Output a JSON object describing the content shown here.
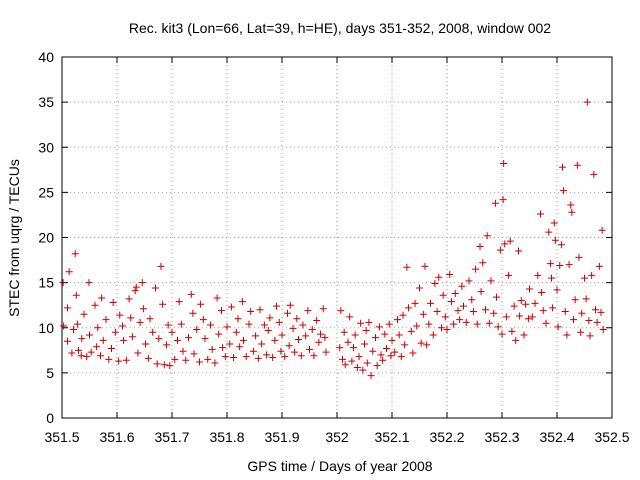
{
  "chart_data": {
    "type": "scatter",
    "title": "Rec. kit3 (Lon=66, Lat=39, h=HE), days 351-352, 2008, window 002",
    "xlabel": "GPS time / Days of year 2008",
    "ylabel": "STEC from uqrg / TECUs",
    "xlim": [
      351.5,
      352.5
    ],
    "ylim": [
      0,
      40
    ],
    "xticks": [
      "351.5",
      "351.6",
      "351.7",
      "351.8",
      "351.9",
      "352",
      "352.1",
      "352.2",
      "352.3",
      "352.4",
      "352.5"
    ],
    "yticks": [
      "0",
      "5",
      "10",
      "15",
      "20",
      "25",
      "30",
      "35",
      "40"
    ],
    "grid": true,
    "marker": "+",
    "color": "#cc0000",
    "series": [
      {
        "name": "STEC",
        "points": [
          [
            351.502,
            15.0
          ],
          [
            351.503,
            10.2
          ],
          [
            351.51,
            12.2
          ],
          [
            351.51,
            8.5
          ],
          [
            351.513,
            16.2
          ],
          [
            351.518,
            7.2
          ],
          [
            351.521,
            9.8
          ],
          [
            351.524,
            18.2
          ],
          [
            351.526,
            13.6
          ],
          [
            351.528,
            10.4
          ],
          [
            351.53,
            7.5
          ],
          [
            351.535,
            6.9
          ],
          [
            351.536,
            8.8
          ],
          [
            351.54,
            11.5
          ],
          [
            351.545,
            6.8
          ],
          [
            351.549,
            15.0
          ],
          [
            351.55,
            9.2
          ],
          [
            351.553,
            7.3
          ],
          [
            351.56,
            12.5
          ],
          [
            351.563,
            7.9
          ],
          [
            351.565,
            10.0
          ],
          [
            351.57,
            6.9
          ],
          [
            351.572,
            13.3
          ],
          [
            351.575,
            8.6
          ],
          [
            351.58,
            10.9
          ],
          [
            351.585,
            6.5
          ],
          [
            351.59,
            7.7
          ],
          [
            351.593,
            12.8
          ],
          [
            351.597,
            9.5
          ],
          [
            351.603,
            6.3
          ],
          [
            351.605,
            11.4
          ],
          [
            351.61,
            10.2
          ],
          [
            351.612,
            8.6
          ],
          [
            351.617,
            6.4
          ],
          [
            351.622,
            13.2
          ],
          [
            351.625,
            11.1
          ],
          [
            351.628,
            9.0
          ],
          [
            351.633,
            14.1
          ],
          [
            351.635,
            14.5
          ],
          [
            351.638,
            7.2
          ],
          [
            351.642,
            10.6
          ],
          [
            351.646,
            15.0
          ],
          [
            351.648,
            12.1
          ],
          [
            351.652,
            8.2
          ],
          [
            351.657,
            6.6
          ],
          [
            351.66,
            11.0
          ],
          [
            351.665,
            9.5
          ],
          [
            351.67,
            14.4
          ],
          [
            351.673,
            6.0
          ],
          [
            351.676,
            8.8
          ],
          [
            351.68,
            16.8
          ],
          [
            351.683,
            12.6
          ],
          [
            351.686,
            5.9
          ],
          [
            351.69,
            8.1
          ],
          [
            351.693,
            10.3
          ],
          [
            351.696,
            5.8
          ],
          [
            351.7,
            9.5
          ],
          [
            351.705,
            6.5
          ],
          [
            351.71,
            8.6
          ],
          [
            351.713,
            12.9
          ],
          [
            351.717,
            10.4
          ],
          [
            351.72,
            7.4
          ],
          [
            351.725,
            6.4
          ],
          [
            351.73,
            8.9
          ],
          [
            351.735,
            13.7
          ],
          [
            351.738,
            11.6
          ],
          [
            351.74,
            7.1
          ],
          [
            351.745,
            9.8
          ],
          [
            351.75,
            6.2
          ],
          [
            351.752,
            12.6
          ],
          [
            351.757,
            10.9
          ],
          [
            351.76,
            8.8
          ],
          [
            351.765,
            6.5
          ],
          [
            351.77,
            10.3
          ],
          [
            351.773,
            7.6
          ],
          [
            351.778,
            6.1
          ],
          [
            351.782,
            13.3
          ],
          [
            351.785,
            9.3
          ],
          [
            351.79,
            11.9
          ],
          [
            351.792,
            7.8
          ],
          [
            351.797,
            6.8
          ],
          [
            351.8,
            10.1
          ],
          [
            351.805,
            8.2
          ],
          [
            351.808,
            12.3
          ],
          [
            351.812,
            6.7
          ],
          [
            351.817,
            9.5
          ],
          [
            351.82,
            11.0
          ],
          [
            351.823,
            7.9
          ],
          [
            351.828,
            12.9
          ],
          [
            351.83,
            8.6
          ],
          [
            351.835,
            6.8
          ],
          [
            351.84,
            10.4
          ],
          [
            351.843,
            11.8
          ],
          [
            351.848,
            7.4
          ],
          [
            351.852,
            9.1
          ],
          [
            351.857,
            6.6
          ],
          [
            351.86,
            12.0
          ],
          [
            351.863,
            8.2
          ],
          [
            351.868,
            10.3
          ],
          [
            351.872,
            7.0
          ],
          [
            351.875,
            9.7
          ],
          [
            351.878,
            11.1
          ],
          [
            351.883,
            6.7
          ],
          [
            351.887,
            8.6
          ],
          [
            351.89,
            12.4
          ],
          [
            351.895,
            10.6
          ],
          [
            351.898,
            7.4
          ],
          [
            351.9,
            9.2
          ],
          [
            351.905,
            6.8
          ],
          [
            351.91,
            11.6
          ],
          [
            351.913,
            8.0
          ],
          [
            351.915,
            12.5
          ],
          [
            351.92,
            9.9
          ],
          [
            351.923,
            7.3
          ],
          [
            351.927,
            11.0
          ],
          [
            351.93,
            8.7
          ],
          [
            351.935,
            6.9
          ],
          [
            351.938,
            10.3
          ],
          [
            351.943,
            9.1
          ],
          [
            351.947,
            11.9
          ],
          [
            351.95,
            7.6
          ],
          [
            351.955,
            9.8
          ],
          [
            351.958,
            6.9
          ],
          [
            351.963,
            10.8
          ],
          [
            351.967,
            8.4
          ],
          [
            351.97,
            9.3
          ],
          [
            351.975,
            12.1
          ],
          [
            351.978,
            8.9
          ],
          [
            351.98,
            7.3
          ],
          [
            352.005,
            7.8
          ],
          [
            352.007,
            11.9
          ],
          [
            352.01,
            6.5
          ],
          [
            352.013,
            9.5
          ],
          [
            352.015,
            5.9
          ],
          [
            352.02,
            8.4
          ],
          [
            352.023,
            11.2
          ],
          [
            352.027,
            6.3
          ],
          [
            352.03,
            7.8
          ],
          [
            352.033,
            9.2
          ],
          [
            352.037,
            5.6
          ],
          [
            352.04,
            6.8
          ],
          [
            352.043,
            10.5
          ],
          [
            352.047,
            5.3
          ],
          [
            352.05,
            8.2
          ],
          [
            352.053,
            9.7
          ],
          [
            352.055,
            6.1
          ],
          [
            352.058,
            10.6
          ],
          [
            352.062,
            4.7
          ],
          [
            352.065,
            7.4
          ],
          [
            352.07,
            8.9
          ],
          [
            352.073,
            5.8
          ],
          [
            352.077,
            10.1
          ],
          [
            352.08,
            7.0
          ],
          [
            352.083,
            6.4
          ],
          [
            352.087,
            9.3
          ],
          [
            352.09,
            7.7
          ],
          [
            352.095,
            10.4
          ],
          [
            352.098,
            6.9
          ],
          [
            352.1,
            8.6
          ],
          [
            352.105,
            7.3
          ],
          [
            352.11,
            10.9
          ],
          [
            352.113,
            9.2
          ],
          [
            352.117,
            6.8
          ],
          [
            352.12,
            11.4
          ],
          [
            352.123,
            8.1
          ],
          [
            352.127,
            16.7
          ],
          [
            352.13,
            12.2
          ],
          [
            352.135,
            9.6
          ],
          [
            352.138,
            7.2
          ],
          [
            352.142,
            12.7
          ],
          [
            352.145,
            10.2
          ],
          [
            352.15,
            14.4
          ],
          [
            352.153,
            8.3
          ],
          [
            352.157,
            11.5
          ],
          [
            352.16,
            16.8
          ],
          [
            352.163,
            8.1
          ],
          [
            352.167,
            10.4
          ],
          [
            352.17,
            12.7
          ],
          [
            352.175,
            9.2
          ],
          [
            352.178,
            14.9
          ],
          [
            352.182,
            11.8
          ],
          [
            352.185,
            15.6
          ],
          [
            352.19,
            10.0
          ],
          [
            352.193,
            13.6
          ],
          [
            352.197,
            11.2
          ],
          [
            352.2,
            9.8
          ],
          [
            352.205,
            15.9
          ],
          [
            352.208,
            12.9
          ],
          [
            352.212,
            10.4
          ],
          [
            352.215,
            13.8
          ],
          [
            352.22,
            11.9
          ],
          [
            352.223,
            10.9
          ],
          [
            352.227,
            14.6
          ],
          [
            352.23,
            12.4
          ],
          [
            352.235,
            10.6
          ],
          [
            352.24,
            15.2
          ],
          [
            352.245,
            13.1
          ],
          [
            352.248,
            11.8
          ],
          [
            352.252,
            16.5
          ],
          [
            352.255,
            10.4
          ],
          [
            352.26,
            19.0
          ],
          [
            352.262,
            14.0
          ],
          [
            352.265,
            17.2
          ],
          [
            352.27,
            12.0
          ],
          [
            352.273,
            20.2
          ],
          [
            352.277,
            10.5
          ],
          [
            352.28,
            15.2
          ],
          [
            352.285,
            11.6
          ],
          [
            352.288,
            23.8
          ],
          [
            352.29,
            13.4
          ],
          [
            352.293,
            10.1
          ],
          [
            352.297,
            18.6
          ],
          [
            352.3,
            9.3
          ],
          [
            352.302,
            24.2
          ],
          [
            352.303,
            28.2
          ],
          [
            352.305,
            19.3
          ],
          [
            352.308,
            11.2
          ],
          [
            352.312,
            15.8
          ],
          [
            352.315,
            19.6
          ],
          [
            352.318,
            9.6
          ],
          [
            352.322,
            12.4
          ],
          [
            352.325,
            8.6
          ],
          [
            352.33,
            18.5
          ],
          [
            352.332,
            11.3
          ],
          [
            352.335,
            13.0
          ],
          [
            352.34,
            9.2
          ],
          [
            352.343,
            12.6
          ],
          [
            352.348,
            11.0
          ],
          [
            352.35,
            14.3
          ],
          [
            352.355,
            11.2
          ],
          [
            352.36,
            12.7
          ],
          [
            352.365,
            15.8
          ],
          [
            352.37,
            22.6
          ],
          [
            352.372,
            13.9
          ],
          [
            352.375,
            11.9
          ],
          [
            352.38,
            10.5
          ],
          [
            352.385,
            20.6
          ],
          [
            352.388,
            17.1
          ],
          [
            352.39,
            15.5
          ],
          [
            352.392,
            12.2
          ],
          [
            352.395,
            21.6
          ],
          [
            352.397,
            19.7
          ],
          [
            352.4,
            14.2
          ],
          [
            352.402,
            10.1
          ],
          [
            352.405,
            16.9
          ],
          [
            352.408,
            19.2
          ],
          [
            352.41,
            27.8
          ],
          [
            352.412,
            25.2
          ],
          [
            352.415,
            11.8
          ],
          [
            352.418,
            9.2
          ],
          [
            352.422,
            17.0
          ],
          [
            352.425,
            23.6
          ],
          [
            352.427,
            22.8
          ],
          [
            352.43,
            10.9
          ],
          [
            352.433,
            13.1
          ],
          [
            352.437,
            28.0
          ],
          [
            352.44,
            17.8
          ],
          [
            352.443,
            9.5
          ],
          [
            352.445,
            11.6
          ],
          [
            352.45,
            15.5
          ],
          [
            352.453,
            13.2
          ],
          [
            352.455,
            35.0
          ],
          [
            352.458,
            10.8
          ],
          [
            352.46,
            9.1
          ],
          [
            352.463,
            15.8
          ],
          [
            352.467,
            27.0
          ],
          [
            352.47,
            12.0
          ],
          [
            352.473,
            10.6
          ],
          [
            352.477,
            16.8
          ],
          [
            352.48,
            11.7
          ],
          [
            352.482,
            20.8
          ],
          [
            352.484,
            9.8
          ]
        ]
      }
    ]
  }
}
